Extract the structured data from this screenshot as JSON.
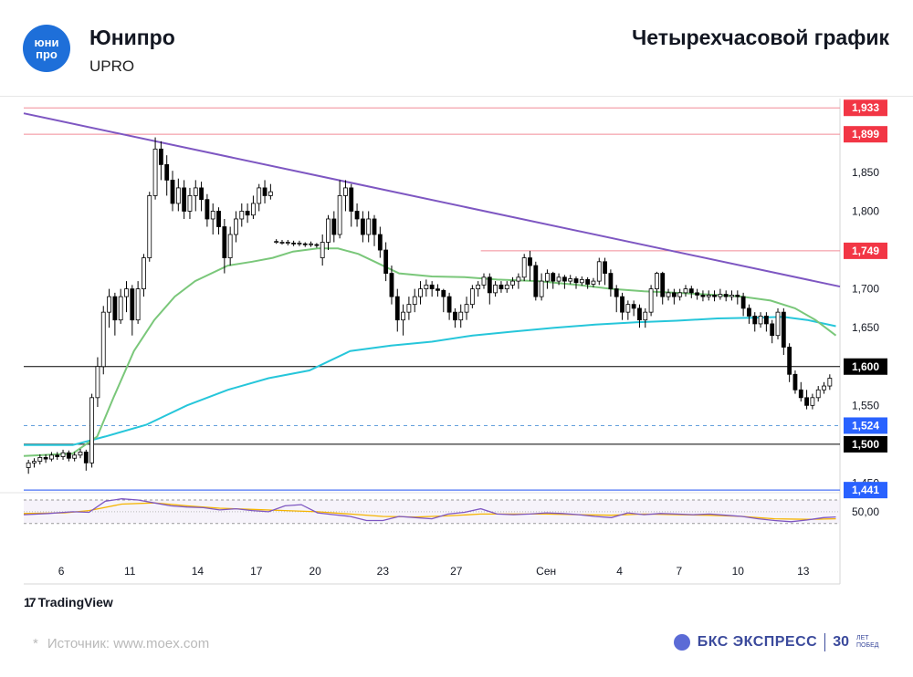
{
  "header": {
    "logo_text_1": "юни",
    "logo_text_2": "про",
    "company": "Юнипро",
    "ticker": "UPRO",
    "chart_title": "Четырехчасовой график"
  },
  "footer": {
    "tradingview": "TradingView",
    "tv_mark": "17",
    "source_star": "*",
    "source": "Источник: www.moex.com",
    "brand": "БКС ЭКСПРЕСС",
    "years": "30",
    "years_note_1": "ЛЕТ",
    "years_note_2": "ПОБЕД"
  },
  "colors": {
    "candle": "#000000",
    "ma_fast": "#7ac77a",
    "ma_slow": "#26c6da",
    "trendline": "#7e57c2",
    "resistance": "#f28b96",
    "level_black": "#000000",
    "level_blue": "#4a72f5",
    "dashed_blue": "#64a0dc",
    "badge_red": "#f23645",
    "badge_black": "#000000",
    "badge_blue": "#2962ff",
    "rsi_line": "#7e57c2",
    "rsi_signal": "#f5b400"
  },
  "chart_data": {
    "type": "candlestick",
    "price_axis": {
      "ticks": [
        "1,850",
        "1,800",
        "1,700",
        "1,650",
        "1,550",
        "1,450"
      ],
      "range": [
        1.44,
        1.945
      ]
    },
    "time_axis": {
      "ticks": [
        "6",
        "11",
        "14",
        "17",
        "20",
        "23",
        "27",
        "Сен",
        "4",
        "7",
        "10",
        "13"
      ]
    },
    "levels": [
      {
        "value": 1.933,
        "label": "1,933",
        "kind": "resistance",
        "from": 0
      },
      {
        "value": 1.899,
        "label": "1,899",
        "kind": "resistance",
        "from": 0
      },
      {
        "value": 1.749,
        "label": "1,749",
        "kind": "resistance",
        "from": 0.56
      },
      {
        "value": 1.6,
        "label": "1,600",
        "kind": "black",
        "from": 0
      },
      {
        "value": 1.524,
        "label": "1,524",
        "kind": "dashed",
        "from": 0
      },
      {
        "value": 1.5,
        "label": "1,500",
        "kind": "black",
        "from": 0
      },
      {
        "value": 1.441,
        "label": "1,441",
        "kind": "blue",
        "from": 0
      }
    ],
    "trendline": {
      "from": [
        0,
        1.926
      ],
      "to": [
        1,
        1.703
      ]
    },
    "candles": [
      [
        1.47,
        1.476,
        1.462,
        1.48
      ],
      [
        1.476,
        1.478,
        1.47,
        1.482
      ],
      [
        1.478,
        1.483,
        1.474,
        1.487
      ],
      [
        1.483,
        1.481,
        1.476,
        1.487
      ],
      [
        1.481,
        1.486,
        1.478,
        1.49
      ],
      [
        1.486,
        1.484,
        1.48,
        1.49
      ],
      [
        1.484,
        1.489,
        1.48,
        1.493
      ],
      [
        1.489,
        1.482,
        1.478,
        1.492
      ],
      [
        1.482,
        1.486,
        1.478,
        1.49
      ],
      [
        1.486,
        1.49,
        1.482,
        1.494
      ],
      [
        1.49,
        1.476,
        1.466,
        1.493
      ],
      [
        1.476,
        1.56,
        1.47,
        1.565
      ],
      [
        1.56,
        1.6,
        1.548,
        1.612
      ],
      [
        1.6,
        1.67,
        1.59,
        1.678
      ],
      [
        1.67,
        1.69,
        1.65,
        1.7
      ],
      [
        1.69,
        1.66,
        1.64,
        1.695
      ],
      [
        1.66,
        1.69,
        1.655,
        1.7
      ],
      [
        1.69,
        1.7,
        1.67,
        1.71
      ],
      [
        1.7,
        1.66,
        1.64,
        1.705
      ],
      [
        1.66,
        1.7,
        1.655,
        1.71
      ],
      [
        1.7,
        1.74,
        1.69,
        1.745
      ],
      [
        1.74,
        1.82,
        1.735,
        1.825
      ],
      [
        1.82,
        1.88,
        1.815,
        1.895
      ],
      [
        1.88,
        1.86,
        1.84,
        1.89
      ],
      [
        1.86,
        1.84,
        1.82,
        1.872
      ],
      [
        1.84,
        1.81,
        1.8,
        1.852
      ],
      [
        1.81,
        1.83,
        1.8,
        1.842
      ],
      [
        1.83,
        1.8,
        1.79,
        1.84
      ],
      [
        1.8,
        1.82,
        1.79,
        1.83
      ],
      [
        1.82,
        1.83,
        1.8,
        1.84
      ],
      [
        1.83,
        1.815,
        1.8,
        1.838
      ],
      [
        1.815,
        1.79,
        1.78,
        1.822
      ],
      [
        1.79,
        1.8,
        1.77,
        1.81
      ],
      [
        1.8,
        1.78,
        1.77,
        1.805
      ],
      [
        1.78,
        1.74,
        1.72,
        1.79
      ],
      [
        1.74,
        1.77,
        1.73,
        1.78
      ],
      [
        1.77,
        1.79,
        1.76,
        1.8
      ],
      [
        1.79,
        1.8,
        1.78,
        1.81
      ],
      [
        1.8,
        1.795,
        1.785,
        1.81
      ],
      [
        1.795,
        1.81,
        1.79,
        1.82
      ],
      [
        1.81,
        1.83,
        1.8,
        1.835
      ],
      [
        1.83,
        1.82,
        1.81,
        1.84
      ],
      [
        1.82,
        1.825,
        1.815,
        1.835
      ],
      [
        1.76,
        1.761,
        1.758,
        1.764
      ],
      [
        1.76,
        1.76,
        1.757,
        1.763
      ],
      [
        1.759,
        1.76,
        1.756,
        1.763
      ],
      [
        1.759,
        1.758,
        1.755,
        1.762
      ],
      [
        1.758,
        1.759,
        1.755,
        1.762
      ],
      [
        1.758,
        1.757,
        1.754,
        1.76
      ],
      [
        1.757,
        1.758,
        1.754,
        1.761
      ],
      [
        1.757,
        1.756,
        1.753,
        1.759
      ],
      [
        1.74,
        1.76,
        1.73,
        1.77
      ],
      [
        1.76,
        1.79,
        1.75,
        1.795
      ],
      [
        1.79,
        1.77,
        1.76,
        1.8
      ],
      [
        1.77,
        1.82,
        1.765,
        1.84
      ],
      [
        1.82,
        1.83,
        1.8,
        1.84
      ],
      [
        1.83,
        1.8,
        1.78,
        1.835
      ],
      [
        1.8,
        1.79,
        1.78,
        1.81
      ],
      [
        1.79,
        1.77,
        1.76,
        1.8
      ],
      [
        1.77,
        1.79,
        1.76,
        1.8
      ],
      [
        1.79,
        1.77,
        1.755,
        1.795
      ],
      [
        1.77,
        1.75,
        1.74,
        1.78
      ],
      [
        1.75,
        1.72,
        1.71,
        1.76
      ],
      [
        1.72,
        1.69,
        1.68,
        1.73
      ],
      [
        1.69,
        1.66,
        1.645,
        1.7
      ],
      [
        1.66,
        1.67,
        1.64,
        1.68
      ],
      [
        1.67,
        1.68,
        1.66,
        1.69
      ],
      [
        1.68,
        1.69,
        1.67,
        1.7
      ],
      [
        1.69,
        1.7,
        1.68,
        1.71
      ],
      [
        1.7,
        1.705,
        1.69,
        1.712
      ],
      [
        1.705,
        1.7,
        1.69,
        1.71
      ],
      [
        1.7,
        1.698,
        1.69,
        1.706
      ],
      [
        1.698,
        1.69,
        1.67,
        1.7
      ],
      [
        1.69,
        1.67,
        1.66,
        1.695
      ],
      [
        1.67,
        1.66,
        1.65,
        1.675
      ],
      [
        1.66,
        1.67,
        1.65,
        1.68
      ],
      [
        1.67,
        1.68,
        1.66,
        1.69
      ],
      [
        1.68,
        1.7,
        1.675,
        1.705
      ],
      [
        1.7,
        1.705,
        1.69,
        1.71
      ],
      [
        1.705,
        1.715,
        1.7,
        1.72
      ],
      [
        1.715,
        1.695,
        1.68,
        1.72
      ],
      [
        1.695,
        1.705,
        1.69,
        1.71
      ],
      [
        1.705,
        1.7,
        1.695,
        1.71
      ],
      [
        1.7,
        1.705,
        1.695,
        1.71
      ],
      [
        1.705,
        1.71,
        1.7,
        1.715
      ],
      [
        1.71,
        1.715,
        1.7,
        1.72
      ],
      [
        1.715,
        1.74,
        1.71,
        1.745
      ],
      [
        1.74,
        1.73,
        1.71,
        1.749
      ],
      [
        1.73,
        1.69,
        1.685,
        1.735
      ],
      [
        1.69,
        1.71,
        1.685,
        1.72
      ],
      [
        1.71,
        1.72,
        1.7,
        1.725
      ],
      [
        1.72,
        1.71,
        1.7,
        1.722
      ],
      [
        1.71,
        1.715,
        1.705,
        1.72
      ],
      [
        1.715,
        1.71,
        1.7,
        1.718
      ],
      [
        1.71,
        1.713,
        1.706,
        1.718
      ],
      [
        1.713,
        1.708,
        1.7,
        1.716
      ],
      [
        1.708,
        1.712,
        1.704,
        1.716
      ],
      [
        1.712,
        1.706,
        1.7,
        1.715
      ],
      [
        1.706,
        1.71,
        1.702,
        1.714
      ],
      [
        1.71,
        1.735,
        1.705,
        1.74
      ],
      [
        1.735,
        1.72,
        1.705,
        1.74
      ],
      [
        1.72,
        1.7,
        1.69,
        1.725
      ],
      [
        1.7,
        1.69,
        1.67,
        1.705
      ],
      [
        1.69,
        1.67,
        1.66,
        1.695
      ],
      [
        1.67,
        1.68,
        1.66,
        1.685
      ],
      [
        1.68,
        1.675,
        1.665,
        1.685
      ],
      [
        1.675,
        1.66,
        1.65,
        1.68
      ],
      [
        1.66,
        1.67,
        1.65,
        1.675
      ],
      [
        1.67,
        1.7,
        1.665,
        1.705
      ],
      [
        1.7,
        1.72,
        1.69,
        1.722
      ],
      [
        1.72,
        1.69,
        1.68,
        1.722
      ],
      [
        1.69,
        1.695,
        1.685,
        1.7
      ],
      [
        1.695,
        1.69,
        1.68,
        1.7
      ],
      [
        1.69,
        1.695,
        1.685,
        1.7
      ],
      [
        1.695,
        1.7,
        1.69,
        1.705
      ],
      [
        1.7,
        1.695,
        1.688,
        1.704
      ],
      [
        1.695,
        1.692,
        1.686,
        1.7
      ],
      [
        1.692,
        1.69,
        1.684,
        1.698
      ],
      [
        1.69,
        1.692,
        1.685,
        1.698
      ],
      [
        1.692,
        1.69,
        1.684,
        1.698
      ],
      [
        1.69,
        1.693,
        1.686,
        1.7
      ],
      [
        1.693,
        1.69,
        1.684,
        1.698
      ],
      [
        1.69,
        1.692,
        1.685,
        1.698
      ],
      [
        1.692,
        1.69,
        1.68,
        1.698
      ],
      [
        1.69,
        1.675,
        1.665,
        1.695
      ],
      [
        1.675,
        1.665,
        1.655,
        1.68
      ],
      [
        1.665,
        1.655,
        1.645,
        1.67
      ],
      [
        1.655,
        1.665,
        1.65,
        1.67
      ],
      [
        1.665,
        1.655,
        1.645,
        1.67
      ],
      [
        1.655,
        1.64,
        1.63,
        1.66
      ],
      [
        1.64,
        1.67,
        1.635,
        1.675
      ],
      [
        1.67,
        1.625,
        1.615,
        1.675
      ],
      [
        1.625,
        1.59,
        1.58,
        1.63
      ],
      [
        1.59,
        1.57,
        1.565,
        1.595
      ],
      [
        1.57,
        1.56,
        1.555,
        1.58
      ],
      [
        1.56,
        1.55,
        1.545,
        1.57
      ],
      [
        1.55,
        1.56,
        1.545,
        1.565
      ],
      [
        1.56,
        1.57,
        1.555,
        1.575
      ],
      [
        1.57,
        1.575,
        1.565,
        1.58
      ],
      [
        1.575,
        1.585,
        1.57,
        1.59
      ]
    ],
    "ma_fast": [
      [
        0,
        1.485
      ],
      [
        0.06,
        1.488
      ],
      [
        0.09,
        1.51
      ],
      [
        0.11,
        1.56
      ],
      [
        0.135,
        1.62
      ],
      [
        0.16,
        1.66
      ],
      [
        0.185,
        1.69
      ],
      [
        0.21,
        1.71
      ],
      [
        0.25,
        1.73
      ],
      [
        0.28,
        1.735
      ],
      [
        0.305,
        1.74
      ],
      [
        0.33,
        1.748
      ],
      [
        0.36,
        1.752
      ],
      [
        0.385,
        1.752
      ],
      [
        0.41,
        1.745
      ],
      [
        0.43,
        1.735
      ],
      [
        0.46,
        1.72
      ],
      [
        0.5,
        1.716
      ],
      [
        0.54,
        1.715
      ],
      [
        0.58,
        1.712
      ],
      [
        0.63,
        1.71
      ],
      [
        0.68,
        1.705
      ],
      [
        0.72,
        1.7
      ],
      [
        0.76,
        1.697
      ],
      [
        0.8,
        1.695
      ],
      [
        0.85,
        1.692
      ],
      [
        0.88,
        1.69
      ],
      [
        0.915,
        1.685
      ],
      [
        0.945,
        1.675
      ],
      [
        0.97,
        1.66
      ],
      [
        0.995,
        1.64
      ]
    ],
    "ma_slow": [
      [
        0,
        1.499
      ],
      [
        0.06,
        1.499
      ],
      [
        0.1,
        1.51
      ],
      [
        0.15,
        1.525
      ],
      [
        0.2,
        1.55
      ],
      [
        0.25,
        1.57
      ],
      [
        0.3,
        1.585
      ],
      [
        0.35,
        1.595
      ],
      [
        0.4,
        1.62
      ],
      [
        0.45,
        1.627
      ],
      [
        0.5,
        1.632
      ],
      [
        0.55,
        1.64
      ],
      [
        0.6,
        1.645
      ],
      [
        0.65,
        1.65
      ],
      [
        0.7,
        1.654
      ],
      [
        0.75,
        1.657
      ],
      [
        0.8,
        1.659
      ],
      [
        0.85,
        1.662
      ],
      [
        0.9,
        1.663
      ],
      [
        0.93,
        1.664
      ],
      [
        0.96,
        1.66
      ],
      [
        0.995,
        1.652
      ]
    ],
    "rsi": {
      "axis_label": "50,00",
      "line": [
        [
          0,
          45
        ],
        [
          0.03,
          47
        ],
        [
          0.06,
          50
        ],
        [
          0.08,
          49
        ],
        [
          0.1,
          68
        ],
        [
          0.12,
          72
        ],
        [
          0.14,
          70
        ],
        [
          0.16,
          65
        ],
        [
          0.18,
          60
        ],
        [
          0.2,
          58
        ],
        [
          0.22,
          57
        ],
        [
          0.24,
          53
        ],
        [
          0.26,
          55
        ],
        [
          0.28,
          52
        ],
        [
          0.3,
          50
        ],
        [
          0.32,
          60
        ],
        [
          0.34,
          62
        ],
        [
          0.36,
          48
        ],
        [
          0.38,
          45
        ],
        [
          0.4,
          42
        ],
        [
          0.42,
          35
        ],
        [
          0.44,
          35
        ],
        [
          0.46,
          42
        ],
        [
          0.48,
          40
        ],
        [
          0.5,
          38
        ],
        [
          0.52,
          46
        ],
        [
          0.54,
          49
        ],
        [
          0.56,
          55
        ],
        [
          0.58,
          46
        ],
        [
          0.6,
          45
        ],
        [
          0.62,
          46
        ],
        [
          0.64,
          48
        ],
        [
          0.66,
          47
        ],
        [
          0.68,
          45
        ],
        [
          0.7,
          42
        ],
        [
          0.72,
          40
        ],
        [
          0.74,
          48
        ],
        [
          0.76,
          45
        ],
        [
          0.78,
          47
        ],
        [
          0.8,
          46
        ],
        [
          0.82,
          45
        ],
        [
          0.84,
          46
        ],
        [
          0.86,
          44
        ],
        [
          0.88,
          42
        ],
        [
          0.9,
          38
        ],
        [
          0.92,
          35
        ],
        [
          0.94,
          33
        ],
        [
          0.96,
          36
        ],
        [
          0.98,
          40
        ],
        [
          0.995,
          41
        ]
      ],
      "signal": [
        [
          0,
          47
        ],
        [
          0.05,
          48
        ],
        [
          0.08,
          52
        ],
        [
          0.12,
          63
        ],
        [
          0.16,
          65
        ],
        [
          0.2,
          60
        ],
        [
          0.24,
          56
        ],
        [
          0.28,
          54
        ],
        [
          0.32,
          52
        ],
        [
          0.36,
          50
        ],
        [
          0.4,
          46
        ],
        [
          0.44,
          42
        ],
        [
          0.48,
          41
        ],
        [
          0.52,
          43
        ],
        [
          0.56,
          46
        ],
        [
          0.6,
          46
        ],
        [
          0.64,
          46
        ],
        [
          0.68,
          45
        ],
        [
          0.72,
          44
        ],
        [
          0.76,
          46
        ],
        [
          0.8,
          45
        ],
        [
          0.84,
          44
        ],
        [
          0.88,
          42
        ],
        [
          0.92,
          38
        ],
        [
          0.96,
          37
        ],
        [
          0.995,
          38
        ]
      ]
    }
  }
}
